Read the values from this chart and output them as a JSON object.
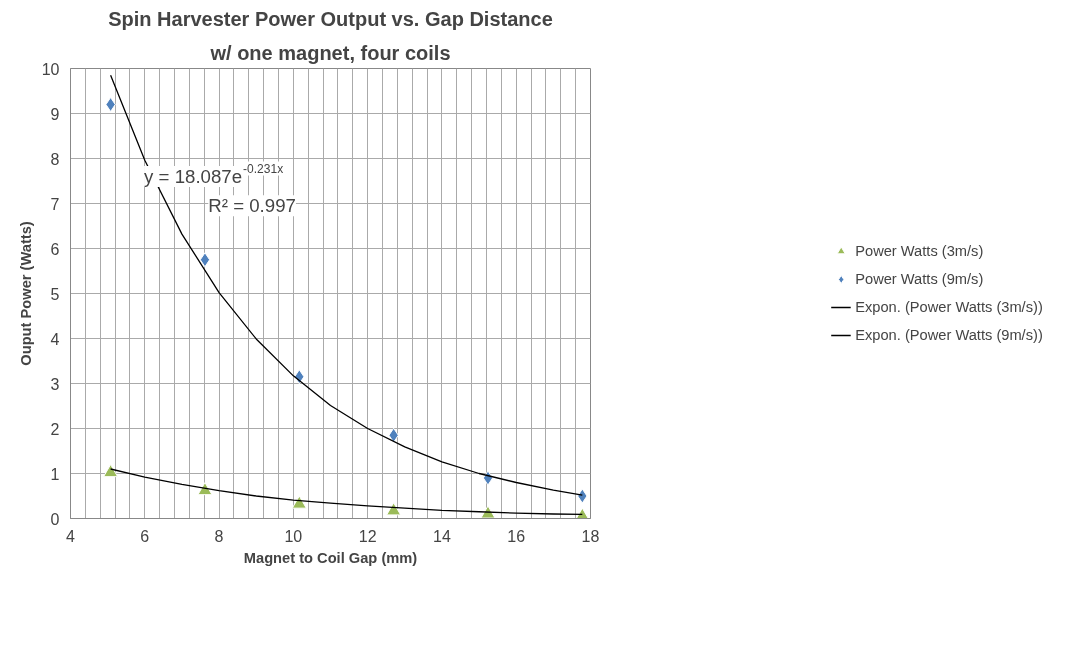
{
  "chart_data": {
    "type": "scatter",
    "title": "Spin Harvester Power Output vs. Gap Distance",
    "subtitle": "w/ one magnet, four coils",
    "xlabel": "Magnet to Coil Gap (mm)",
    "ylabel": "Ouput Power (Watts)",
    "series": [
      {
        "name": "Power Watts (3m/s)",
        "marker": "triangle",
        "color": "#9bbb59",
        "x": [
          5.08,
          7.62,
          10.16,
          12.7,
          15.24,
          17.78
        ],
        "values": [
          1.02,
          0.62,
          0.32,
          0.17,
          0.1,
          0.05
        ]
      },
      {
        "name": "Power Watts (9m/s)",
        "marker": "diamond",
        "color": "#4f81bd",
        "x": [
          5.08,
          7.62,
          10.16,
          12.7,
          15.24,
          17.78
        ],
        "values": [
          9.2,
          5.75,
          3.15,
          1.85,
          0.9,
          0.5
        ]
      },
      {
        "name": "Expon. (Power Watts (3m/s))",
        "type": "line",
        "color": "#000000",
        "x": [
          5.08,
          6,
          7,
          8,
          9,
          10,
          11,
          12,
          13,
          14,
          15,
          16,
          17,
          17.78
        ],
        "values": [
          1.1,
          0.92,
          0.76,
          0.62,
          0.5,
          0.41,
          0.34,
          0.28,
          0.23,
          0.18,
          0.15,
          0.12,
          0.1,
          0.09
        ]
      },
      {
        "name": "Expon. (Power Watts (9m/s))",
        "type": "line",
        "color": "#000000",
        "x": [
          5.08,
          6,
          7,
          8,
          9,
          10,
          11,
          12,
          13,
          14,
          15,
          16,
          17,
          17.78
        ],
        "values": [
          9.85,
          7.96,
          6.32,
          5.02,
          3.99,
          3.17,
          2.51,
          2.0,
          1.59,
          1.26,
          1.0,
          0.8,
          0.63,
          0.52
        ]
      }
    ],
    "annotations": [
      "y = 18.087e$^{-0.231x}$",
      "R² = 0.997"
    ],
    "xlim": [
      4,
      18
    ],
    "ylim": [
      0,
      10
    ],
    "xticks": [
      4,
      {
        "value": 4.4,
        "label": null
      },
      {
        "value": 4.8,
        "label": null
      },
      {
        "value": 5.2,
        "label": null
      },
      {
        "value": 5.6,
        "label": null
      },
      6,
      {
        "value": 6.4,
        "label": null
      },
      {
        "value": 6.8,
        "label": null
      },
      {
        "value": 7.2,
        "label": null
      },
      {
        "value": 7.6,
        "label": null
      },
      8,
      {
        "value": 8.4,
        "label": null
      },
      {
        "value": 8.8,
        "label": null
      },
      {
        "value": 9.2,
        "label": null
      },
      {
        "value": 9.6,
        "label": null
      },
      10,
      {
        "value": 10.4,
        "label": null
      },
      {
        "value": 10.8,
        "label": null
      },
      {
        "value": 11.2,
        "label": null
      },
      {
        "value": 11.6,
        "label": null
      },
      12,
      {
        "value": 12.4,
        "label": null
      },
      {
        "value": 12.8,
        "label": null
      },
      {
        "value": 13.2,
        "label": null
      },
      {
        "value": 13.6,
        "label": null
      },
      14,
      {
        "value": 14.4,
        "label": null
      },
      {
        "value": 14.8,
        "label": null
      },
      {
        "value": 15.2,
        "label": null
      },
      {
        "value": 15.6,
        "label": null
      },
      16,
      {
        "value": 16.4,
        "label": null
      },
      {
        "value": 16.8,
        "label": null
      },
      {
        "value": 17.2,
        "label": null
      },
      {
        "value": 17.6,
        "label": null
      },
      18
    ],
    "yticks": [
      0,
      1,
      2,
      3,
      4,
      5,
      6,
      7,
      8,
      9,
      10
    ],
    "grid": true,
    "legend": "right"
  }
}
